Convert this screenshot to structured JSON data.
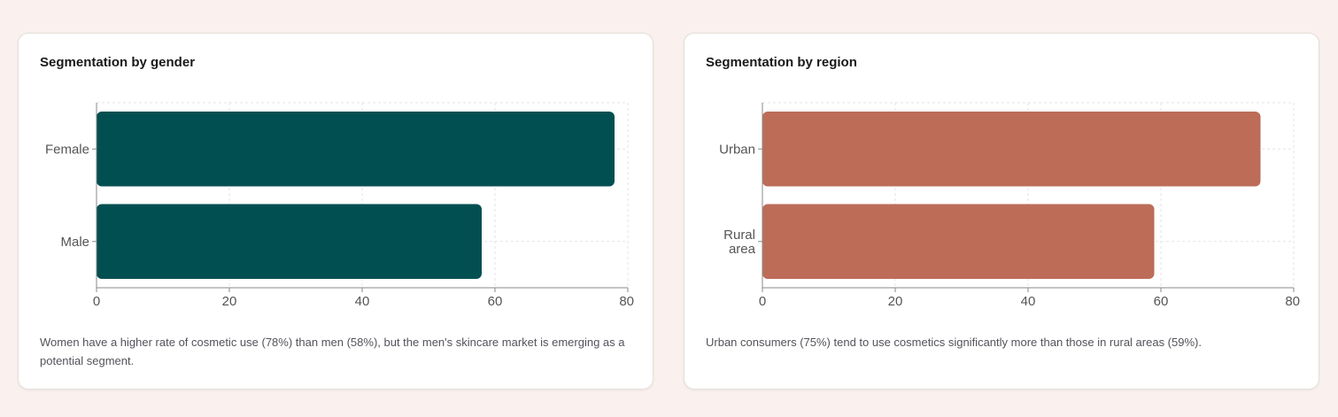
{
  "cards": [
    {
      "title": "Segmentation by gender",
      "caption": "Women have a higher rate of cosmetic use (78%) than men (58%), but the men's skincare market is emerging as a potential segment.",
      "bar_color": "#024f51"
    },
    {
      "title": "Segmentation by region",
      "caption": "Urban consumers (75%) tend to use cosmetics significantly more than those in rural areas (59%).",
      "bar_color": "#bd6c58"
    }
  ],
  "chart_data": [
    {
      "type": "bar",
      "orientation": "horizontal",
      "title": "Segmentation by gender",
      "categories": [
        "Female",
        "Male"
      ],
      "values": [
        78,
        58
      ],
      "xlim": [
        0,
        80
      ],
      "xticks": [
        0,
        20,
        40,
        60,
        80
      ],
      "grid": true
    },
    {
      "type": "bar",
      "orientation": "horizontal",
      "title": "Segmentation by region",
      "categories": [
        "Urban",
        "Rural area"
      ],
      "values": [
        75,
        59
      ],
      "xlim": [
        0,
        80
      ],
      "xticks": [
        0,
        20,
        40,
        60,
        80
      ],
      "grid": true
    }
  ]
}
